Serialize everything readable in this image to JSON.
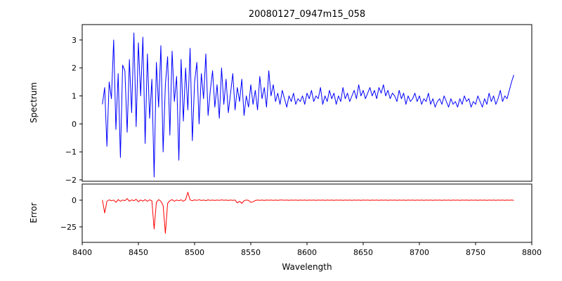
{
  "title": "20080127_0947m15_058",
  "chart_data": [
    {
      "type": "line",
      "title": "20080127_0947m15_058",
      "ylabel": "Spectrum",
      "xlabel": "",
      "xlim": [
        8400,
        8800
      ],
      "ylim": [
        -2.05,
        3.55
      ],
      "yticks": [
        -2,
        -1,
        0,
        1,
        2,
        3
      ],
      "grid": false,
      "legend": "none",
      "series": [
        {
          "name": "spectrum",
          "color": "#0000ff",
          "x_start": 8418,
          "x_step": 2,
          "values": [
            0.7,
            1.3,
            -0.8,
            1.5,
            0.9,
            3.0,
            -0.2,
            1.8,
            -1.2,
            2.1,
            1.9,
            -0.3,
            2.3,
            0.4,
            3.25,
            -0.1,
            2.9,
            1.0,
            3.1,
            -0.7,
            2.5,
            0.2,
            1.6,
            -1.9,
            2.2,
            0.6,
            2.8,
            -1.0,
            1.4,
            2.4,
            -0.4,
            2.6,
            0.8,
            1.7,
            -1.3,
            2.3,
            0.1,
            2.0,
            0.5,
            2.7,
            -0.6,
            1.5,
            2.2,
            0.0,
            1.8,
            0.9,
            2.5,
            0.3,
            1.2,
            1.9,
            0.6,
            1.4,
            0.2,
            2.0,
            0.7,
            1.6,
            0.4,
            1.1,
            1.8,
            0.5,
            1.3,
            0.8,
            1.6,
            0.3,
            1.0,
            0.6,
            1.4,
            0.7,
            1.2,
            0.5,
            1.7,
            0.9,
            1.3,
            0.6,
            1.9,
            1.0,
            1.4,
            0.8,
            1.1,
            0.7,
            1.2,
            0.9,
            0.6,
            1.0,
            0.8,
            1.1,
            0.7,
            0.9,
            0.8,
            1.0,
            0.7,
            1.1,
            0.9,
            1.2,
            0.8,
            1.0,
            0.9,
            1.3,
            0.7,
            1.0,
            0.8,
            1.2,
            0.9,
            1.1,
            0.7,
            1.0,
            0.8,
            1.3,
            0.9,
            1.1,
            0.8,
            1.0,
            1.2,
            0.9,
            1.4,
            1.0,
            1.2,
            0.9,
            1.1,
            1.3,
            1.0,
            1.2,
            0.9,
            1.3,
            1.1,
            1.4,
            1.0,
            1.2,
            0.9,
            1.1,
            1.0,
            0.8,
            1.2,
            0.9,
            1.1,
            0.7,
            1.0,
            0.8,
            0.9,
            1.1,
            0.8,
            1.0,
            0.7,
            0.9,
            0.8,
            1.1,
            0.7,
            0.9,
            0.6,
            0.8,
            0.9,
            0.7,
            1.0,
            0.8,
            0.6,
            0.9,
            0.7,
            0.8,
            0.6,
            0.9,
            0.7,
            1.0,
            0.8,
            0.9,
            0.6,
            0.8,
            0.7,
            1.0,
            0.8,
            0.6,
            0.9,
            0.7,
            1.1,
            0.8,
            1.0,
            0.7,
            0.9,
            1.2,
            0.8,
            1.0,
            0.9,
            1.2,
            1.5,
            1.75
          ]
        }
      ]
    },
    {
      "type": "line",
      "ylabel": "Error",
      "xlabel": "Wavelength",
      "xlim": [
        8400,
        8800
      ],
      "ylim": [
        -39.5,
        15.1
      ],
      "yticks": [
        -25,
        0
      ],
      "xticks": [
        8400,
        8450,
        8500,
        8550,
        8600,
        8650,
        8700,
        8750,
        8800
      ],
      "grid": false,
      "legend": "none",
      "series": [
        {
          "name": "error",
          "color": "#ff0000",
          "x_start": 8418,
          "x_step": 2,
          "values": [
            0.2,
            -12,
            -1,
            0.3,
            -0.5,
            0.1,
            -2,
            0.5,
            -1,
            0.2,
            -0.5,
            1.5,
            -1,
            0.3,
            -0.5,
            0.8,
            -1.5,
            0.2,
            -0.8,
            0.5,
            -1,
            0.3,
            -0.5,
            -27,
            -2,
            0.5,
            -1,
            -5,
            -31,
            -3,
            -0.5,
            0.5,
            -1,
            0.2,
            -0.5,
            0.3,
            -1,
            0.5,
            7.5,
            0.2,
            -0.5,
            0.3,
            -0.2,
            0.4,
            -0.3,
            0.2,
            -0.4,
            0.3,
            -0.2,
            0.1,
            -0.3,
            0.2,
            -0.2,
            0.3,
            -0.1,
            0.2,
            -0.3,
            0.1,
            -0.2,
            0.2,
            -2.5,
            -1,
            -3,
            -0.5,
            0.2,
            -0.2,
            -2,
            -1.5,
            -0.3,
            0.2,
            -0.2,
            0.1,
            -0.3,
            0.2,
            -0.1,
            0.2,
            -0.2,
            0.1,
            -0.2,
            0.2,
            0.1,
            -0.1,
            0.2,
            -0.2,
            0.1,
            -0.1,
            0.2,
            -0.2,
            0.1,
            -0.1,
            0.2,
            -0.2,
            0.1,
            -0.1,
            0.2,
            -0.2,
            0.1,
            -0.1,
            0.2,
            -0.2,
            0.1,
            -0.1,
            0.2,
            -0.2,
            0.1,
            -0.1,
            0.2,
            -0.2,
            0.1,
            -0.1,
            0.2,
            -0.2,
            0.1,
            -0.1,
            0.2,
            -0.2,
            0.1,
            -0.1,
            0.2,
            -0.2,
            0.1,
            -0.1,
            0.2,
            -0.2,
            0.1,
            -0.1,
            0.2,
            -0.2,
            0.1,
            -0.1,
            0.2,
            -0.2,
            0.1,
            -0.1,
            0.2,
            -0.2,
            0.1,
            -0.1,
            0.2,
            -0.2,
            0.1,
            -0.1,
            0.2,
            -0.2,
            0.1,
            -0.1,
            0.2,
            -0.2,
            0.1,
            -0.1,
            0.2,
            -0.2,
            0.1,
            -0.1,
            0.2,
            -0.2,
            0.1,
            -0.1,
            0.2,
            -0.2,
            0.1,
            -0.1,
            0.2,
            -0.2,
            0.1,
            -0.1,
            0.2,
            -0.2,
            0.1,
            -0.1,
            0.2,
            -0.2,
            0.1,
            -0.1,
            0.2,
            -0.2,
            0.1,
            -0.1,
            0.2,
            -0.2,
            0.1,
            -0.1,
            0.2,
            -0.2
          ]
        }
      ]
    }
  ]
}
